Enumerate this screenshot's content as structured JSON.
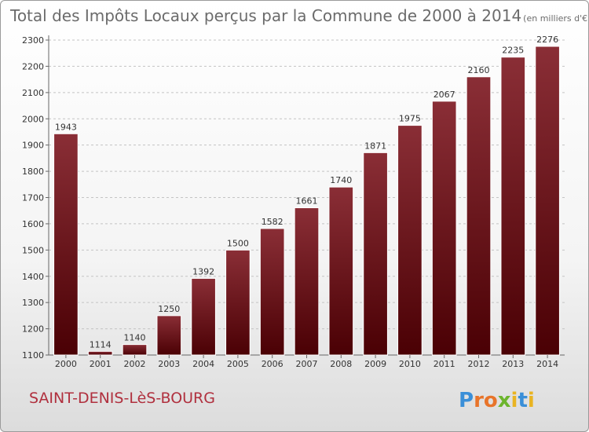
{
  "chart_data": {
    "type": "bar",
    "title": "Total des Impôts Locaux perçus par la Commune de 2000 à 2014",
    "unit": "(en milliers d'€)",
    "categories": [
      "2000",
      "2001",
      "2002",
      "2003",
      "2004",
      "2005",
      "2006",
      "2007",
      "2008",
      "2009",
      "2010",
      "2011",
      "2012",
      "2013",
      "2014"
    ],
    "values": [
      1943,
      1114,
      1140,
      1250,
      1392,
      1500,
      1582,
      1661,
      1740,
      1871,
      1975,
      2067,
      2160,
      2235,
      2276
    ],
    "ylim": [
      1100,
      2300
    ],
    "yticks": [
      1100,
      1200,
      1300,
      1400,
      1500,
      1600,
      1700,
      1800,
      1900,
      2000,
      2100,
      2200,
      2300
    ],
    "xlabel": "",
    "ylabel": "",
    "grid": true,
    "bar_color_top": "#8a2e36",
    "bar_color_bottom": "#4a0004"
  },
  "commune_name": "SAINT-DENIS-LèS-BOURG",
  "logo": {
    "text": "Proxiti",
    "letters": [
      {
        "ch": "P",
        "color": "#3a8fd8"
      },
      {
        "ch": "r",
        "color": "#e8742a"
      },
      {
        "ch": "o",
        "color": "#e8742a"
      },
      {
        "ch": "x",
        "color": "#6cb52d"
      },
      {
        "ch": "i",
        "color": "#e9b422"
      },
      {
        "ch": "t",
        "color": "#3a8fd8"
      },
      {
        "ch": "i",
        "color": "#e9b422"
      }
    ]
  }
}
